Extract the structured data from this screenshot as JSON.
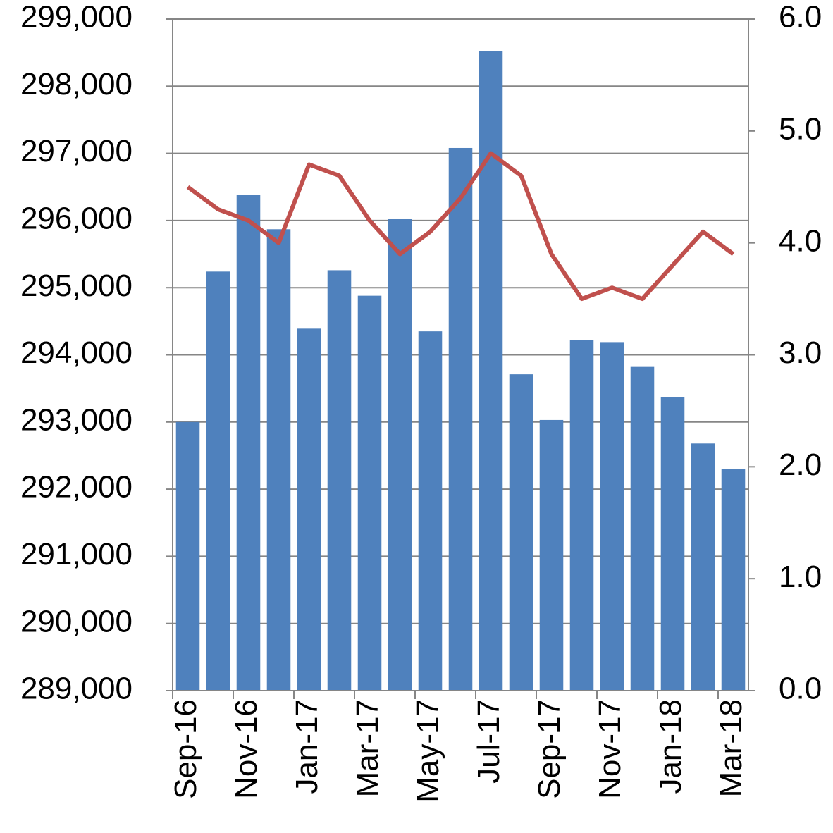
{
  "chart_data": {
    "type": "bar",
    "categories": [
      "Sep-16",
      null,
      "Nov-16",
      null,
      "Jan-17",
      null,
      "Mar-17",
      null,
      "May-17",
      null,
      "Jul-17",
      null,
      "Sep-17",
      null,
      "Nov-17",
      null,
      "Jan-18",
      null,
      "Mar-18"
    ],
    "series": [
      {
        "type": "bar",
        "color": "#4f81bd",
        "values": [
          293000,
          295240,
          296380,
          295870,
          294390,
          295260,
          294880,
          296020,
          294350,
          297080,
          298520,
          293710,
          293030,
          294220,
          294190,
          293820,
          293370,
          292680,
          292300
        ]
      },
      {
        "type": "line",
        "axis": "y2",
        "color": "#c0504d",
        "values": [
          4.5,
          4.3,
          4.2,
          4.0,
          4.7,
          4.6,
          4.2,
          3.9,
          4.1,
          4.4,
          4.8,
          4.6,
          3.9,
          3.5,
          3.6,
          3.5,
          3.8,
          4.1,
          3.9
        ]
      }
    ],
    "ylim": [
      289000,
      299000
    ],
    "yticks": [
      {
        "value": 289000,
        "label": "289,000"
      },
      {
        "value": 290000,
        "label": "290,000"
      },
      {
        "value": 291000,
        "label": "291,000"
      },
      {
        "value": 292000,
        "label": "292,000"
      },
      {
        "value": 293000,
        "label": "293,000"
      },
      {
        "value": 294000,
        "label": "294,000"
      },
      {
        "value": 295000,
        "label": "295,000"
      },
      {
        "value": 296000,
        "label": "296,000"
      },
      {
        "value": 297000,
        "label": "297,000"
      },
      {
        "value": 298000,
        "label": "298,000"
      },
      {
        "value": 299000,
        "label": "299,000"
      }
    ],
    "y2lim": [
      0,
      6
    ],
    "y2ticks": [
      {
        "value": 0,
        "label": "0.0"
      },
      {
        "value": 1,
        "label": "1.0"
      },
      {
        "value": 2,
        "label": "2.0"
      },
      {
        "value": 3,
        "label": "3.0"
      },
      {
        "value": 4,
        "label": "4.0"
      },
      {
        "value": 5,
        "label": "5.0"
      },
      {
        "value": 6,
        "label": "6.0"
      }
    ],
    "grid": true
  }
}
